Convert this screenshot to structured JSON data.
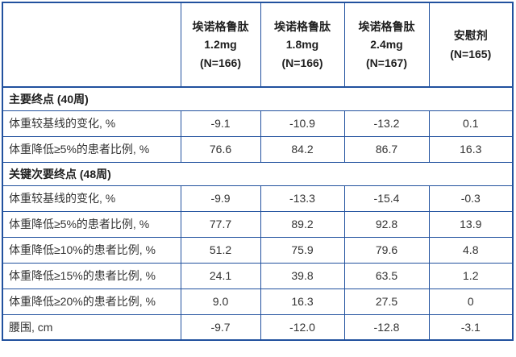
{
  "colors": {
    "border": "#21519E",
    "header_text": "#1F1F1F",
    "body_text": "#333333",
    "background": "#FFFFFF"
  },
  "table": {
    "header": {
      "corner": "",
      "columns": [
        {
          "label": "埃诺格鲁肽\n1.2mg\n(N=166)"
        },
        {
          "label": "埃诺格鲁肽\n1.8mg\n(N=166)"
        },
        {
          "label": "埃诺格鲁肽\n2.4mg\n(N=167)"
        },
        {
          "label": "安慰剂\n(N=165)"
        }
      ]
    },
    "sections": [
      {
        "title": "主要终点 (40周)",
        "rows": [
          {
            "label": "体重较基线的变化, %",
            "values": [
              "-9.1",
              "-10.9",
              "-13.2",
              "0.1"
            ]
          },
          {
            "label": "体重降低≥5%的患者比例, %",
            "values": [
              "76.6",
              "84.2",
              "86.7",
              "16.3"
            ]
          }
        ]
      },
      {
        "title": "关键次要终点 (48周)",
        "rows": [
          {
            "label": "体重较基线的变化, %",
            "values": [
              "-9.9",
              "-13.3",
              "-15.4",
              "-0.3"
            ]
          },
          {
            "label": "体重降低≥5%的患者比例, %",
            "values": [
              "77.7",
              "89.2",
              "92.8",
              "13.9"
            ]
          },
          {
            "label": "体重降低≥10%的患者比例, %",
            "values": [
              "51.2",
              "75.9",
              "79.6",
              "4.8"
            ]
          },
          {
            "label": "体重降低≥15%的患者比例, %",
            "values": [
              "24.1",
              "39.8",
              "63.5",
              "1.2"
            ]
          },
          {
            "label": "体重降低≥20%的患者比例, %",
            "values": [
              "9.0",
              "16.3",
              "27.5",
              "0"
            ]
          }
        ]
      },
      {
        "title": null,
        "rows": [
          {
            "label": "腰围, cm",
            "values": [
              "-9.7",
              "-12.0",
              "-12.8",
              "-3.1"
            ]
          }
        ]
      }
    ]
  }
}
